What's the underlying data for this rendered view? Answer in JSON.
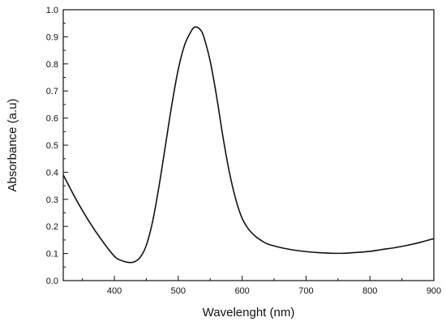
{
  "chart_data": {
    "type": "line",
    "xlabel": "Wavelenght (nm)",
    "ylabel": "Absorbance (a.u)",
    "xlim": [
      320,
      900
    ],
    "ylim": [
      0.0,
      1.0
    ],
    "x_ticks": [
      400,
      500,
      600,
      700,
      800,
      900
    ],
    "y_ticks": [
      0.0,
      0.1,
      0.2,
      0.3,
      0.4,
      0.5,
      0.6,
      0.7,
      0.8,
      0.9,
      1.0
    ],
    "y_tick_labels": [
      "0.0",
      "0.1",
      "0.2",
      "0.3",
      "0.4",
      "0.5",
      "0.6",
      "0.7",
      "0.8",
      "0.9",
      "1.0"
    ],
    "grid": false,
    "legend": "none",
    "line_color": "#111111",
    "series": [
      {
        "x": [
          320,
          340,
          360,
          380,
          400,
          410,
          420,
          430,
          440,
          450,
          460,
          470,
          480,
          490,
          500,
          510,
          520,
          525,
          530,
          535,
          540,
          550,
          560,
          570,
          580,
          590,
          600,
          610,
          620,
          630,
          640,
          660,
          680,
          700,
          720,
          740,
          760,
          780,
          800,
          820,
          840,
          860,
          880,
          900
        ],
        "y": [
          0.39,
          0.3,
          0.22,
          0.15,
          0.09,
          0.075,
          0.068,
          0.068,
          0.085,
          0.13,
          0.22,
          0.35,
          0.5,
          0.65,
          0.78,
          0.87,
          0.92,
          0.935,
          0.935,
          0.925,
          0.9,
          0.81,
          0.68,
          0.53,
          0.4,
          0.3,
          0.23,
          0.19,
          0.165,
          0.148,
          0.135,
          0.122,
          0.113,
          0.107,
          0.103,
          0.101,
          0.101,
          0.104,
          0.108,
          0.115,
          0.122,
          0.131,
          0.142,
          0.155
        ]
      }
    ]
  }
}
